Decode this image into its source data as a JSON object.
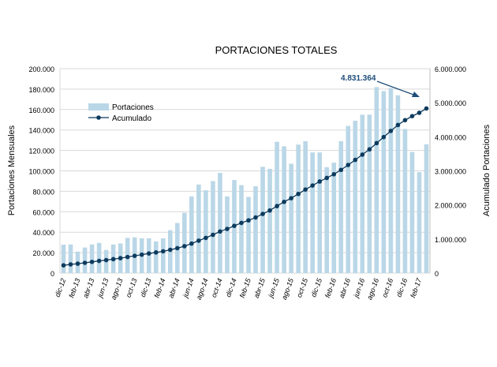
{
  "chart_data": {
    "type": "bar+line",
    "title": "PORTACIONES TOTALES",
    "ylabel_left": "Portaciones Mensuales",
    "ylabel_right": "Acumulado Portaciones",
    "ylim_left": [
      0,
      200000
    ],
    "ylim_right": [
      0,
      6000000
    ],
    "yticks_left": [
      "0",
      "20.000",
      "40.000",
      "60.000",
      "80.000",
      "100.000",
      "120.000",
      "140.000",
      "160.000",
      "180.000",
      "200.000"
    ],
    "yticks_right": [
      "0",
      "1.000.000",
      "2.000.000",
      "3.000.000",
      "4.000.000",
      "5.000.000",
      "6.000.000"
    ],
    "grid": true,
    "legend_placement": "top-left",
    "categories": [
      "dic-12",
      "ene-13",
      "feb-13",
      "mar-13",
      "abr-13",
      "may-13",
      "jun-13",
      "jul-13",
      "ago-13",
      "sep-13",
      "oct-13",
      "nov-13",
      "dic-13",
      "ene-14",
      "feb-14",
      "mar-14",
      "abr-14",
      "may-14",
      "jun-14",
      "jul-14",
      "ago-14",
      "sep-14",
      "oct-14",
      "nov-14",
      "dic-14",
      "ene-15",
      "feb-15",
      "mar-15",
      "abr-15",
      "may-15",
      "jun-15",
      "jul-15",
      "ago-15",
      "sep-15",
      "oct-15",
      "nov-15",
      "dic-15",
      "ene-16",
      "feb-16",
      "mar-16",
      "abr-16",
      "may-16",
      "jun-16",
      "jul-16",
      "ago-16",
      "sep-16",
      "oct-16",
      "nov-16",
      "dic-16",
      "ene-17",
      "feb-17",
      "mar-17"
    ],
    "tick_labels": [
      "dic-12",
      "feb-13",
      "abr-13",
      "jun-13",
      "ago-13",
      "oct-13",
      "dic-13",
      "feb-14",
      "abr-14",
      "jun-14",
      "ago-14",
      "oct-14",
      "dic-14",
      "feb-15",
      "abr-15",
      "jun-15",
      "ago-15",
      "oct-15",
      "dic-15",
      "feb-16",
      "abr-16",
      "jun-16",
      "ago-16",
      "oct-16",
      "dic-16",
      "feb-17"
    ],
    "series": [
      {
        "name": "Portaciones",
        "type": "bar",
        "axis": "left",
        "color": "#b9d7e7",
        "values": [
          27800,
          28000,
          21000,
          25000,
          28000,
          29500,
          22600,
          28000,
          29000,
          34400,
          35000,
          34000,
          34000,
          31000,
          34000,
          42000,
          49000,
          59000,
          75000,
          86600,
          81000,
          90000,
          98000,
          75000,
          91000,
          86000,
          74500,
          85000,
          104000,
          102000,
          128500,
          124000,
          107000,
          125700,
          129000,
          118000,
          118000,
          103600,
          108000,
          129000,
          144000,
          149000,
          155000,
          155000,
          182000,
          178000,
          181000,
          174000,
          141000,
          118500,
          98700,
          126000
        ]
      },
      {
        "name": "Acumulado",
        "type": "line",
        "axis": "right",
        "color": "#0d3b5e",
        "values": [
          227000,
          255000,
          276000,
          301000,
          329000,
          358000,
          381000,
          409000,
          438000,
          472000,
          507000,
          541000,
          575000,
          606000,
          640000,
          682000,
          731000,
          790000,
          865000,
          952000,
          1033000,
          1123000,
          1221000,
          1296000,
          1387000,
          1473000,
          1547000,
          1632000,
          1736000,
          1838000,
          1967000,
          2091000,
          2198000,
          2323000,
          2452000,
          2570000,
          2688000,
          2792000,
          2900000,
          3029000,
          3173000,
          3322000,
          3477000,
          3632000,
          3814000,
          3992000,
          4173000,
          4347000,
          4488000,
          4607000,
          4705000,
          4831364
        ]
      }
    ],
    "annotation": "4.831.364"
  }
}
